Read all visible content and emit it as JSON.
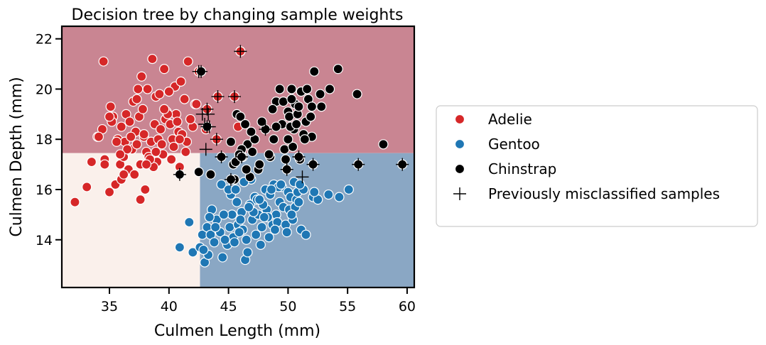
{
  "chart_data": {
    "type": "scatter",
    "title": "Decision tree by changing sample weights",
    "xlabel": "Culmen Length (mm)",
    "ylabel": "Culmen Depth (mm)",
    "xlim": [
      31,
      60.6
    ],
    "ylim": [
      12.1,
      22.5
    ],
    "xticks": [
      35,
      40,
      45,
      50,
      55,
      60
    ],
    "yticks": [
      14,
      16,
      18,
      20,
      22
    ],
    "grid": false,
    "legend_position": "right",
    "colors": {
      "Adelie": "#d62728",
      "Gentoo": "#1f77b4",
      "Chinstrap": "#000000",
      "region_adelie": "#c98592",
      "region_gentoo": "#8aa7c4",
      "region_low": "#faf0eb"
    },
    "decision_regions": [
      {
        "class": "Adelie",
        "x": [
          31,
          60.6
        ],
        "y": [
          17.45,
          22.5
        ]
      },
      {
        "class": "Gentoo",
        "x": [
          42.6,
          60.6
        ],
        "y": [
          12.1,
          17.45
        ]
      },
      {
        "class": "Adelie-light",
        "x": [
          31,
          42.6
        ],
        "y": [
          12.1,
          17.45
        ]
      }
    ],
    "series": [
      {
        "name": "Adelie",
        "marker": "circle",
        "x": [
          32.1,
          33.1,
          33.5,
          34.0,
          34.4,
          34.5,
          34.6,
          35.0,
          35.1,
          35.3,
          35.5,
          35.7,
          35.9,
          36.0,
          36.2,
          36.4,
          36.6,
          36.7,
          36.9,
          37.0,
          37.2,
          37.3,
          37.5,
          37.6,
          37.7,
          37.8,
          37.9,
          38.1,
          38.2,
          38.5,
          38.6,
          38.8,
          38.9,
          39.0,
          39.1,
          39.2,
          39.5,
          39.6,
          39.7,
          39.8,
          40.1,
          40.2,
          40.3,
          40.5,
          40.6,
          40.8,
          40.9,
          41.1,
          41.3,
          41.5,
          41.6,
          42.0,
          42.2,
          42.5,
          43.2,
          44.1,
          45.8,
          46.0,
          35.2,
          36.3,
          37.1,
          38.0,
          39.3,
          40.7,
          41.4,
          36.8,
          38.3,
          34.1,
          37.4,
          38.7,
          39.4,
          42.3,
          35.6,
          40.0,
          36.5,
          37.9,
          39.9,
          41.8,
          38.4,
          36.0,
          37.6,
          40.4,
          35.0,
          38.9,
          41.0,
          34.6,
          36.2,
          39.6,
          38.1,
          37.3,
          35.9,
          40.9,
          42.7,
          44.0,
          43.1,
          46.0,
          45.5
        ],
        "y": [
          15.5,
          16.1,
          17.1,
          18.1,
          18.4,
          21.1,
          17.2,
          15.9,
          19.3,
          18.9,
          16.2,
          18.0,
          17.0,
          18.5,
          17.3,
          19.0,
          16.8,
          18.7,
          17.6,
          19.5,
          18.3,
          17.8,
          18.9,
          17.0,
          20.5,
          19.2,
          18.1,
          17.5,
          20.0,
          17.9,
          21.2,
          18.6,
          19.7,
          17.1,
          18.0,
          19.8,
          17.4,
          20.8,
          18.8,
          19.1,
          18.6,
          17.2,
          18.0,
          20.1,
          19.0,
          18.3,
          16.9,
          18.2,
          19.6,
          17.9,
          21.1,
          18.5,
          19.4,
          20.7,
          19.2,
          19.7,
          18.5,
          21.5,
          18.7,
          17.9,
          16.6,
          16.0,
          18.4,
          18.7,
          17.5,
          18.1,
          17.3,
          18.1,
          20.0,
          16.9,
          17.8,
          19.4,
          17.9,
          19.9,
          17.6,
          18.2,
          19.0,
          18.8,
          17.2,
          16.4,
          15.6,
          17.7,
          18.9,
          17.5,
          20.3,
          17.0,
          16.6,
          19.2,
          17.0,
          19.6,
          17.4,
          18.0,
          20.7,
          18.0,
          18.4,
          21.5,
          19.7
        ]
      },
      {
        "name": "Gentoo",
        "marker": "circle",
        "x": [
          40.9,
          41.7,
          42.0,
          42.6,
          42.8,
          43.0,
          43.2,
          43.3,
          43.5,
          43.6,
          43.8,
          44.0,
          44.3,
          44.5,
          44.9,
          45.1,
          45.3,
          45.4,
          45.5,
          45.7,
          45.8,
          46.1,
          46.2,
          46.4,
          46.5,
          46.6,
          46.8,
          47.0,
          47.2,
          47.3,
          47.5,
          47.7,
          47.8,
          48.1,
          48.2,
          48.4,
          48.5,
          48.7,
          48.8,
          49.0,
          49.1,
          49.3,
          49.5,
          49.6,
          49.8,
          50.0,
          50.1,
          50.2,
          50.4,
          50.5,
          50.7,
          50.8,
          51.1,
          51.3,
          51.5,
          52.1,
          52.5,
          53.4,
          54.3,
          55.1,
          49.2,
          46.9,
          45.2,
          48.3,
          50.6,
          44.4,
          47.4,
          46.0,
          43.9,
          45.0,
          49.9,
          48.6,
          51.0,
          47.1,
          44.7,
          46.3,
          50.3,
          48.9,
          45.6,
          47.9,
          43.4,
          49.4,
          46.7,
          42.9,
          44.6,
          52.2,
          50.9,
          48.0,
          45.9,
          47.6
        ],
        "y": [
          13.7,
          14.7,
          13.5,
          13.7,
          14.2,
          13.1,
          14.5,
          13.4,
          14.2,
          15.2,
          13.9,
          14.8,
          14.3,
          13.3,
          13.8,
          14.5,
          15.0,
          14.1,
          13.9,
          15.5,
          14.6,
          15.1,
          14.4,
          13.2,
          14.0,
          13.5,
          15.4,
          14.8,
          15.7,
          14.2,
          15.0,
          13.8,
          14.5,
          16.0,
          15.2,
          14.1,
          15.8,
          14.6,
          16.2,
          15.0,
          14.7,
          15.5,
          16.1,
          15.3,
          14.6,
          15.9,
          15.2,
          15.7,
          14.8,
          16.3,
          15.6,
          15.9,
          14.4,
          16.0,
          14.2,
          15.7,
          15.6,
          15.8,
          15.7,
          16.0,
          16.1,
          16.4,
          15.8,
          14.9,
          15.3,
          16.2,
          15.6,
          14.8,
          14.5,
          16.0,
          14.3,
          16.0,
          16.2,
          15.1,
          14.0,
          16.3,
          15.0,
          14.4,
          16.0,
          15.4,
          14.9,
          16.2,
          15.3,
          13.6,
          15.0,
          15.9,
          15.5,
          14.9,
          14.3,
          15.6
        ]
      },
      {
        "name": "Chinstrap",
        "marker": "circle",
        "x": [
          40.9,
          42.5,
          43.5,
          45.2,
          45.4,
          45.7,
          46.0,
          46.2,
          46.4,
          46.6,
          46.8,
          47.0,
          47.5,
          48.1,
          48.5,
          49.0,
          49.3,
          49.5,
          49.7,
          50.0,
          50.1,
          50.3,
          50.5,
          50.6,
          50.8,
          51.0,
          51.3,
          51.5,
          51.7,
          52.0,
          52.2,
          52.7,
          53.5,
          54.2,
          55.8,
          58.0,
          45.5,
          46.1,
          47.2,
          48.7,
          49.8,
          50.2,
          50.9,
          51.4,
          52.0,
          45.6,
          46.9,
          47.6,
          49.0,
          50.4,
          51.9,
          49.6,
          50.7,
          51.1,
          46.5,
          48.8,
          50.0,
          51.6,
          52.8,
          45.9,
          47.8,
          50.3,
          42.7,
          43.2,
          44.4,
          45.2,
          46.1,
          50.9,
          52.1,
          55.9,
          59.6,
          49.9,
          48.4
        ],
        "y": [
          16.6,
          16.7,
          16.6,
          17.9,
          17.0,
          19.0,
          18.9,
          17.3,
          18.6,
          17.8,
          16.5,
          17.5,
          16.8,
          18.4,
          17.3,
          19.5,
          20.0,
          18.6,
          17.6,
          19.1,
          18.9,
          20.0,
          18.4,
          19.4,
          19.0,
          17.2,
          18.2,
          18.7,
          19.6,
          18.1,
          20.7,
          19.8,
          20.0,
          20.8,
          19.8,
          17.8,
          16.4,
          17.6,
          18.0,
          19.2,
          17.2,
          18.5,
          19.3,
          18.0,
          19.3,
          17.1,
          18.3,
          17.0,
          18.5,
          17.7,
          18.9,
          19.5,
          18.6,
          19.9,
          16.8,
          18.0,
          18.0,
          20.0,
          19.3,
          17.4,
          18.7,
          19.6,
          20.7,
          18.5,
          17.3,
          16.4,
          17.3,
          17.3,
          17.0,
          17.0,
          17.0,
          16.8,
          17.4
        ]
      }
    ],
    "misclassified": {
      "name": "Previously misclassified samples",
      "marker": "plus",
      "x": [
        40.9,
        42.5,
        42.7,
        43.2,
        43.2,
        43.1,
        43.4,
        43.0,
        44.0,
        44.1,
        44.4,
        45.2,
        45.5,
        46.0,
        46.1,
        48.1,
        49.9,
        50.9,
        51.2,
        52.1,
        55.9,
        59.6,
        42.8,
        43.3
      ],
      "y": [
        16.6,
        20.7,
        20.7,
        19.2,
        18.5,
        17.6,
        18.5,
        18.6,
        18.0,
        19.7,
        17.3,
        16.4,
        19.7,
        21.5,
        17.3,
        18.4,
        16.8,
        17.3,
        16.5,
        17.0,
        17.0,
        17.0,
        19.0,
        19.0
      ]
    },
    "legend": {
      "entries": [
        {
          "label": "Adelie",
          "marker": "circle",
          "color": "#d62728"
        },
        {
          "label": "Gentoo",
          "marker": "circle",
          "color": "#1f77b4"
        },
        {
          "label": "Chinstrap",
          "marker": "circle",
          "color": "#000000"
        },
        {
          "label": "Previously misclassified samples",
          "marker": "plus",
          "color": "#000000"
        }
      ]
    }
  }
}
